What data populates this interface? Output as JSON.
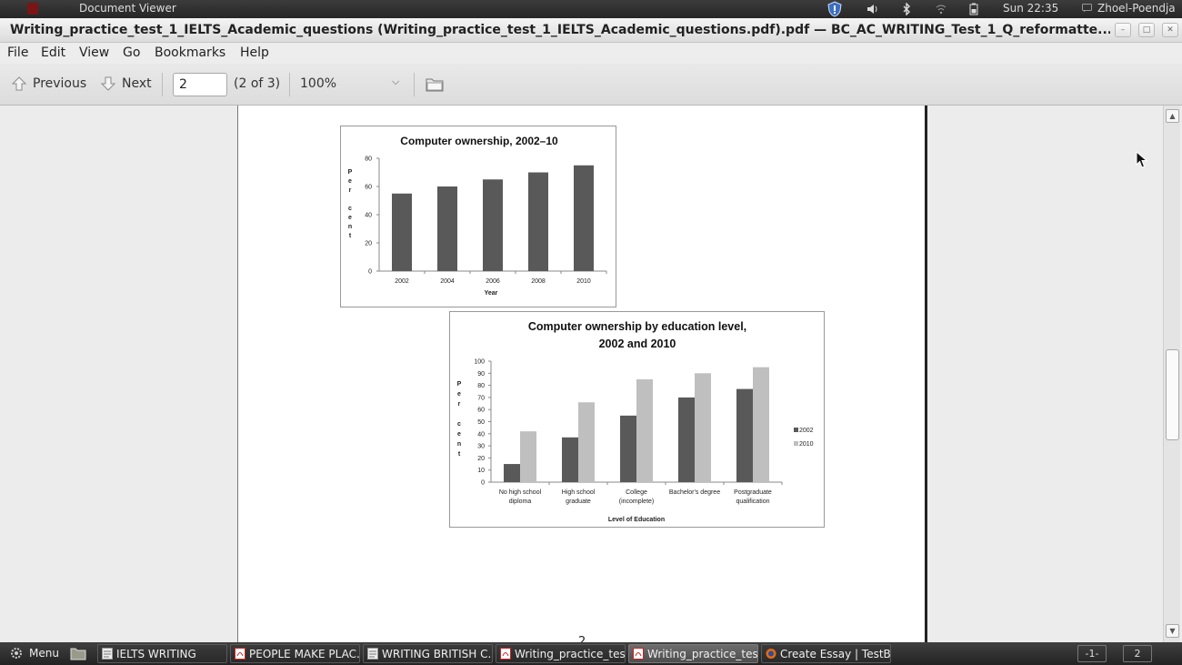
{
  "system_panel": {
    "app_name": "Document Viewer",
    "clock": "Sun 22:35",
    "user": "Zhoel-Poendja",
    "tray_icons": [
      "security-shield-icon",
      "volume-icon",
      "bluetooth-icon",
      "wifi-icon",
      "battery-icon"
    ]
  },
  "window": {
    "title": "Writing_practice_test_1_IELTS_Academic_questions (Writing_practice_test_1_IELTS_Academic_questions.pdf).pdf — BC_AC_WRITING_Test_1_Q_reformatte...",
    "buttons": [
      "minimize",
      "maximize",
      "close"
    ]
  },
  "menu": [
    "File",
    "Edit",
    "View",
    "Go",
    "Bookmarks",
    "Help"
  ],
  "toolbar": {
    "previous_label": "Previous",
    "next_label": "Next",
    "page_value": "2",
    "page_count": "(2 of 3)",
    "zoom": "100%"
  },
  "document": {
    "page_number": "2"
  },
  "chart_data": [
    {
      "type": "bar",
      "title": "Computer ownership, 2002–10",
      "xlabel": "Year",
      "ylabel": "Per cent",
      "categories": [
        "2002",
        "2004",
        "2006",
        "2008",
        "2010"
      ],
      "values": [
        55,
        60,
        65,
        70,
        75
      ],
      "ylim": [
        0,
        80
      ],
      "yticks": [
        "0",
        "20",
        "40",
        "60",
        "80"
      ],
      "color": "#595959"
    },
    {
      "type": "bar",
      "title_lines": [
        "Computer ownership by education level,",
        "2002 and 2010"
      ],
      "xlabel": "Level of Education",
      "ylabel": "Per cent",
      "categories": [
        [
          "No high school",
          "diploma"
        ],
        [
          "High school",
          "graduate"
        ],
        [
          "College",
          "(incomplete)"
        ],
        [
          "Bachelor's degree",
          ""
        ],
        [
          "Postgraduate",
          "qualification"
        ]
      ],
      "series": [
        {
          "name": "2002",
          "values": [
            15,
            37,
            55,
            70,
            77
          ],
          "color": "#595959"
        },
        {
          "name": "2010",
          "values": [
            42,
            66,
            85,
            90,
            95
          ],
          "color": "#bfbfbf"
        }
      ],
      "ylim": [
        0,
        100
      ],
      "yticks": [
        "0",
        "10",
        "20",
        "30",
        "40",
        "50",
        "60",
        "70",
        "80",
        "90",
        "100"
      ],
      "legend": "right"
    }
  ],
  "taskbar": {
    "menu_label": "Menu",
    "tasks": [
      {
        "label": "IELTS WRITING",
        "icon": "text-editor-icon"
      },
      {
        "label": "PEOPLE MAKE PLAC...",
        "icon": "pdf-viewer-icon"
      },
      {
        "label": "WRITING BRITISH C...",
        "icon": "text-editor-icon"
      },
      {
        "label": "Writing_practice_test...",
        "icon": "pdf-viewer-icon"
      },
      {
        "label": "Writing_practice_test...",
        "icon": "pdf-viewer-icon"
      },
      {
        "label": "Create Essay | TestB...",
        "icon": "firefox-icon"
      }
    ],
    "workspaces": [
      "-1-",
      "2"
    ]
  }
}
